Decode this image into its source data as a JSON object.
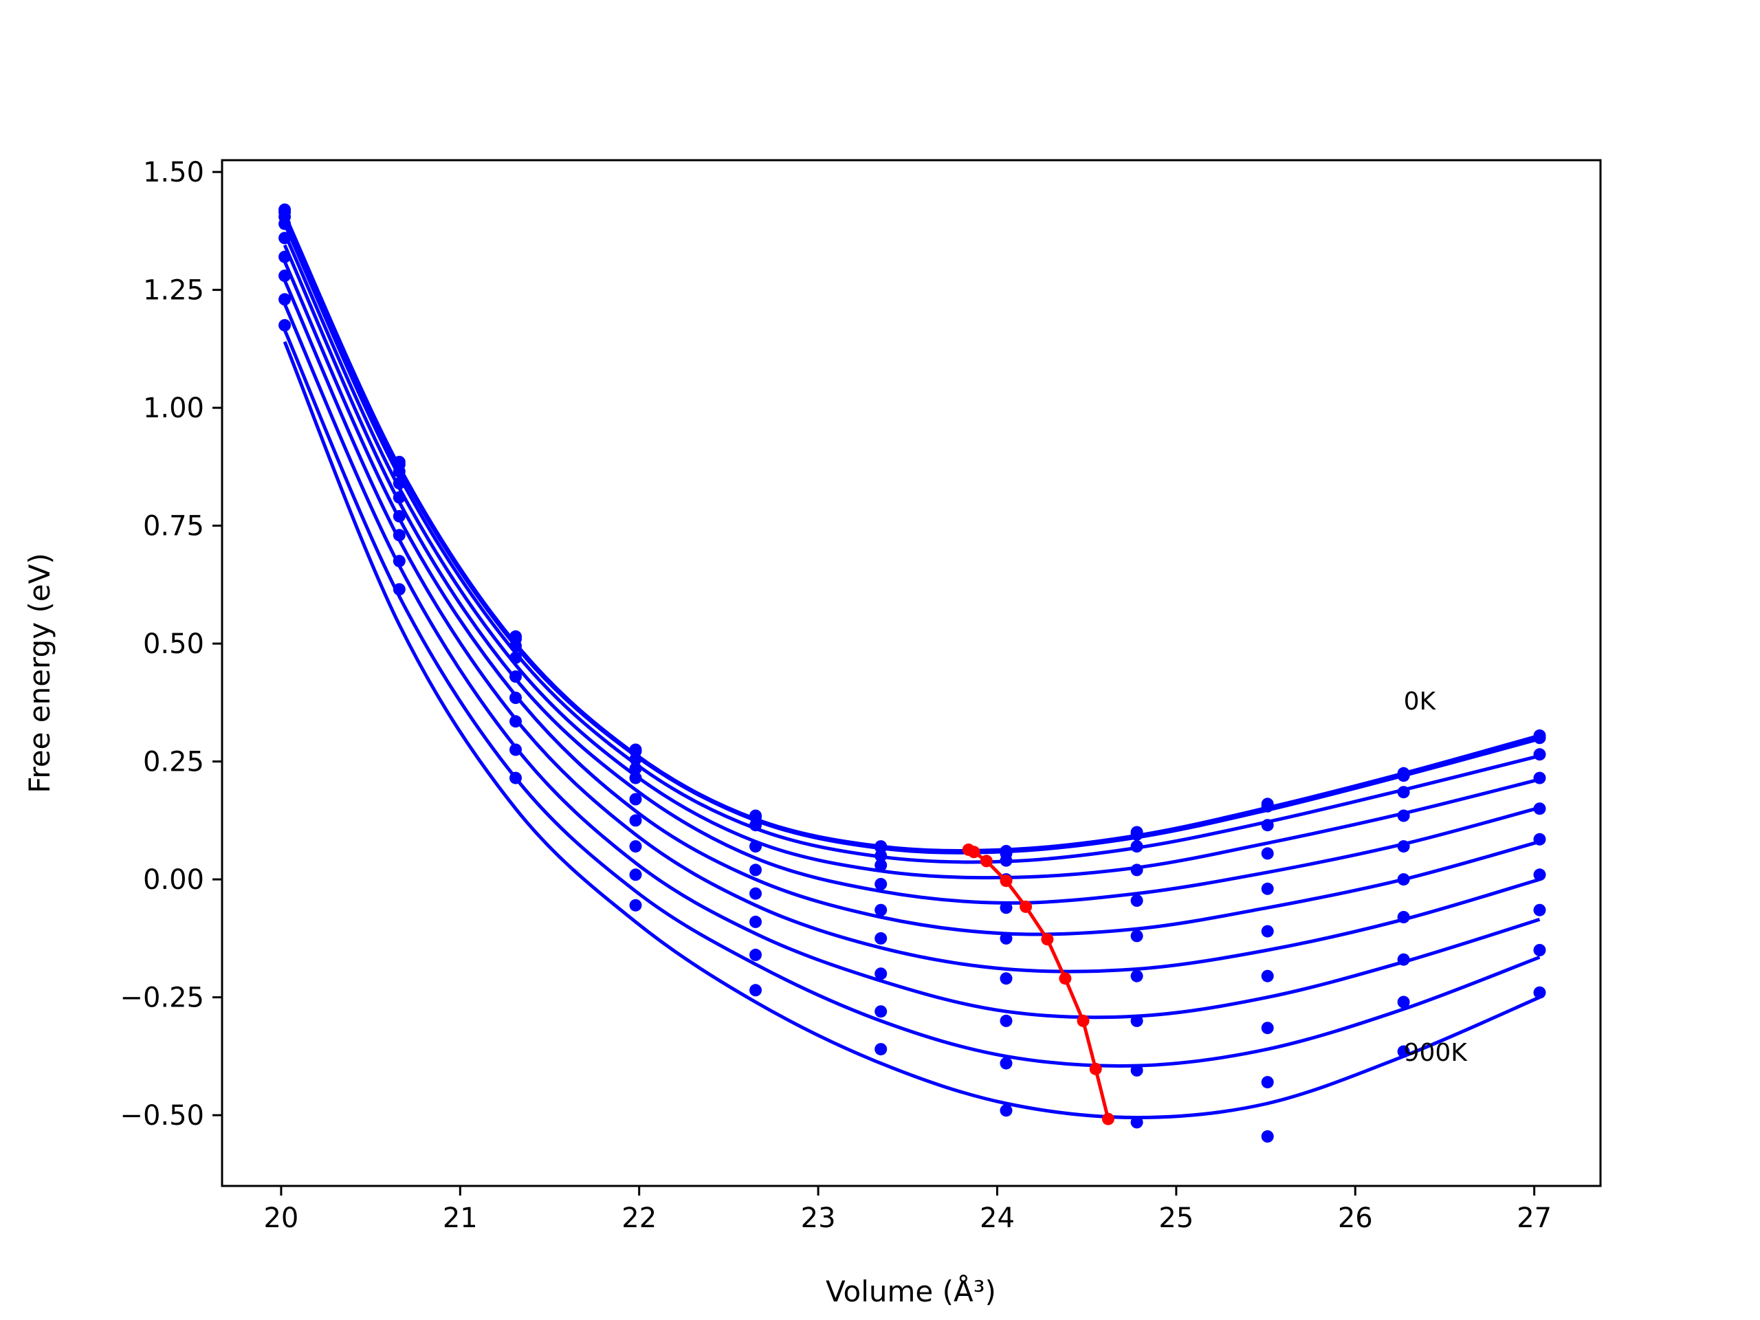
{
  "chart_data": {
    "type": "line",
    "title": "",
    "xlabel": "Volume (Å³)",
    "ylabel": "Free energy (eV)",
    "xlim": [
      19.67,
      27.37
    ],
    "ylim": [
      -0.65,
      1.525
    ],
    "xticks": [
      20,
      21,
      22,
      23,
      24,
      25,
      26,
      27
    ],
    "xtick_labels": [
      "20",
      "21",
      "22",
      "23",
      "24",
      "25",
      "26",
      "27"
    ],
    "yticks": [
      1.5,
      1.25,
      1.0,
      0.75,
      0.5,
      0.25,
      0.0,
      -0.25,
      -0.5
    ],
    "ytick_labels": [
      "1.50",
      "1.25",
      "1.00",
      "0.75",
      "0.50",
      "0.25",
      "0.00",
      "−0.25",
      "−0.50"
    ],
    "grid": false,
    "legend": "none",
    "annotations": [
      {
        "text": "0K",
        "x": 26.27,
        "y": 0.36
      },
      {
        "text": "900K",
        "x": 26.27,
        "y": -0.385
      }
    ],
    "x": [
      20.02,
      20.66,
      21.31,
      21.98,
      22.65,
      23.35,
      24.05,
      24.78,
      25.51,
      26.27,
      27.03
    ],
    "series": [
      {
        "color": "#0000ff",
        "y": [
          1.42,
          0.885,
          0.515,
          0.275,
          0.135,
          0.07,
          0.06,
          0.1,
          0.16,
          0.225,
          0.305
        ],
        "fit": [
          1.41,
          0.875,
          0.5,
          0.265,
          0.128,
          0.07,
          0.063,
          0.093,
          0.152,
          0.225,
          0.305
        ]
      },
      {
        "color": "#0000ff",
        "y": [
          1.415,
          0.88,
          0.51,
          0.272,
          0.132,
          0.068,
          0.055,
          0.095,
          0.155,
          0.22,
          0.3
        ],
        "fit": [
          1.405,
          0.87,
          0.495,
          0.262,
          0.125,
          0.066,
          0.059,
          0.089,
          0.147,
          0.22,
          0.298
        ]
      },
      {
        "color": "#0000ff",
        "y": [
          1.405,
          0.865,
          0.495,
          0.255,
          0.115,
          0.05,
          0.04,
          0.07,
          0.115,
          0.185,
          0.265
        ],
        "fit": [
          1.39,
          0.855,
          0.48,
          0.245,
          0.108,
          0.048,
          0.038,
          0.067,
          0.122,
          0.19,
          0.262
        ]
      },
      {
        "color": "#0000ff",
        "y": [
          1.39,
          0.84,
          0.47,
          0.235,
          0.07,
          0.03,
          0.0,
          0.02,
          0.055,
          0.135,
          0.215
        ],
        "fit": [
          1.37,
          0.83,
          0.455,
          0.22,
          0.08,
          0.018,
          0.004,
          0.025,
          0.077,
          0.14,
          0.212
        ]
      },
      {
        "color": "#0000ff",
        "y": [
          1.36,
          0.81,
          0.43,
          0.215,
          0.02,
          -0.01,
          -0.06,
          -0.045,
          -0.02,
          0.07,
          0.15
        ],
        "fit": [
          1.345,
          0.8,
          0.425,
          0.19,
          0.045,
          -0.025,
          -0.05,
          -0.03,
          0.015,
          0.075,
          0.152
        ]
      },
      {
        "color": "#0000ff",
        "y": [
          1.32,
          0.77,
          0.385,
          0.17,
          -0.03,
          -0.065,
          -0.125,
          -0.12,
          -0.11,
          0.0,
          0.085
        ],
        "fit": [
          1.31,
          0.765,
          0.39,
          0.145,
          0.0,
          -0.08,
          -0.115,
          -0.105,
          -0.06,
          0.0,
          0.08
        ]
      },
      {
        "color": "#0000ff",
        "y": [
          1.28,
          0.73,
          0.335,
          0.125,
          -0.09,
          -0.125,
          -0.21,
          -0.205,
          -0.205,
          -0.08,
          0.01
        ],
        "fit": [
          1.27,
          0.72,
          0.34,
          0.095,
          -0.055,
          -0.145,
          -0.19,
          -0.19,
          -0.15,
          -0.085,
          0.0
        ]
      },
      {
        "color": "#0000ff",
        "y": [
          1.23,
          0.675,
          0.275,
          0.07,
          -0.16,
          -0.2,
          -0.3,
          -0.3,
          -0.315,
          -0.17,
          -0.065
        ],
        "fit": [
          1.22,
          0.665,
          0.28,
          0.035,
          -0.115,
          -0.215,
          -0.28,
          -0.29,
          -0.25,
          -0.175,
          -0.085
        ]
      },
      {
        "color": "#0000ff",
        "y": [
          1.175,
          0.615,
          0.215,
          0.01,
          -0.235,
          -0.28,
          -0.39,
          -0.405,
          -0.43,
          -0.26,
          -0.15
        ],
        "fit": [
          1.165,
          0.6,
          0.215,
          -0.025,
          -0.18,
          -0.3,
          -0.375,
          -0.395,
          -0.36,
          -0.275,
          -0.165
        ]
      },
      {
        "color": "#0000ff",
        "y": [
          null,
          null,
          null,
          -0.055,
          null,
          -0.36,
          -0.49,
          -0.515,
          -0.545,
          -0.365,
          -0.24
        ],
        "fit": [
          1.14,
          0.54,
          0.15,
          -0.09,
          -0.26,
          -0.39,
          -0.475,
          -0.505,
          -0.475,
          -0.375,
          -0.25
        ]
      }
    ],
    "minima": {
      "color": "#ff0000",
      "x": [
        23.84,
        23.87,
        23.94,
        24.05,
        24.16,
        24.28,
        24.38,
        24.48,
        24.55,
        24.62
      ],
      "y": [
        0.063,
        0.058,
        0.039,
        -0.003,
        -0.058,
        -0.127,
        -0.21,
        -0.3,
        -0.402,
        -0.508
      ]
    }
  }
}
